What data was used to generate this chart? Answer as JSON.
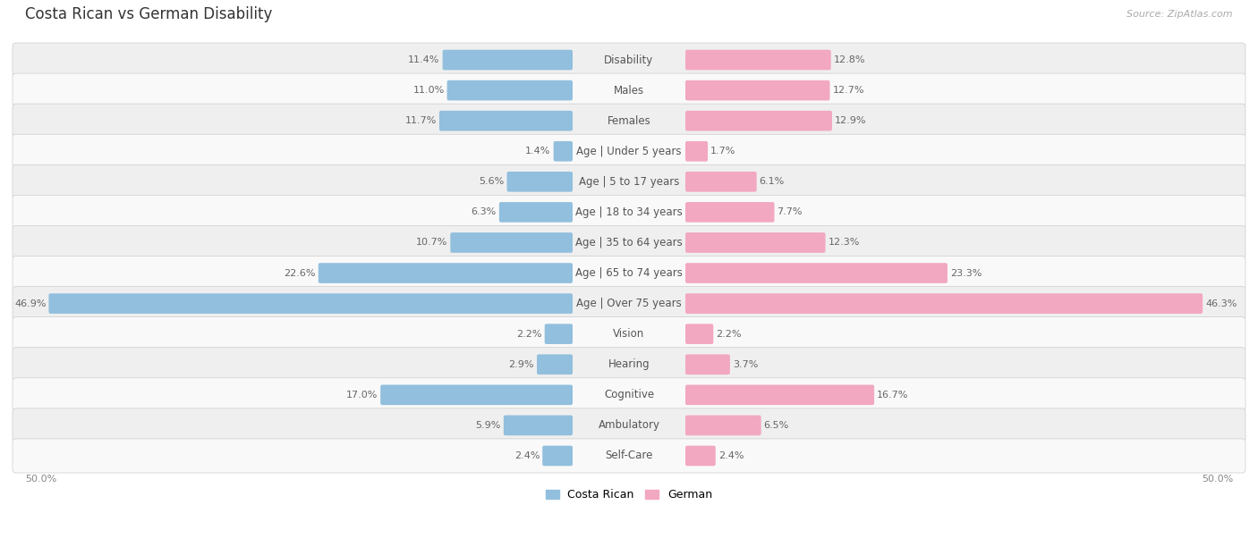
{
  "title": "Costa Rican vs German Disability",
  "source": "Source: ZipAtlas.com",
  "categories": [
    "Disability",
    "Males",
    "Females",
    "Age | Under 5 years",
    "Age | 5 to 17 years",
    "Age | 18 to 34 years",
    "Age | 35 to 64 years",
    "Age | 65 to 74 years",
    "Age | Over 75 years",
    "Vision",
    "Hearing",
    "Cognitive",
    "Ambulatory",
    "Self-Care"
  ],
  "costa_rican": [
    11.4,
    11.0,
    11.7,
    1.4,
    5.6,
    6.3,
    10.7,
    22.6,
    46.9,
    2.2,
    2.9,
    17.0,
    5.9,
    2.4
  ],
  "german": [
    12.8,
    12.7,
    12.9,
    1.7,
    6.1,
    7.7,
    12.3,
    23.3,
    46.3,
    2.2,
    3.7,
    16.7,
    6.5,
    2.4
  ],
  "costa_rican_color": "#92bfdd",
  "german_color": "#f2a8c0",
  "max_val": 50.0,
  "title_fontsize": 12,
  "label_fontsize": 8.5,
  "value_fontsize": 8.0,
  "legend_fontsize": 9,
  "row_colors": [
    "#efefef",
    "#f9f9f9"
  ]
}
